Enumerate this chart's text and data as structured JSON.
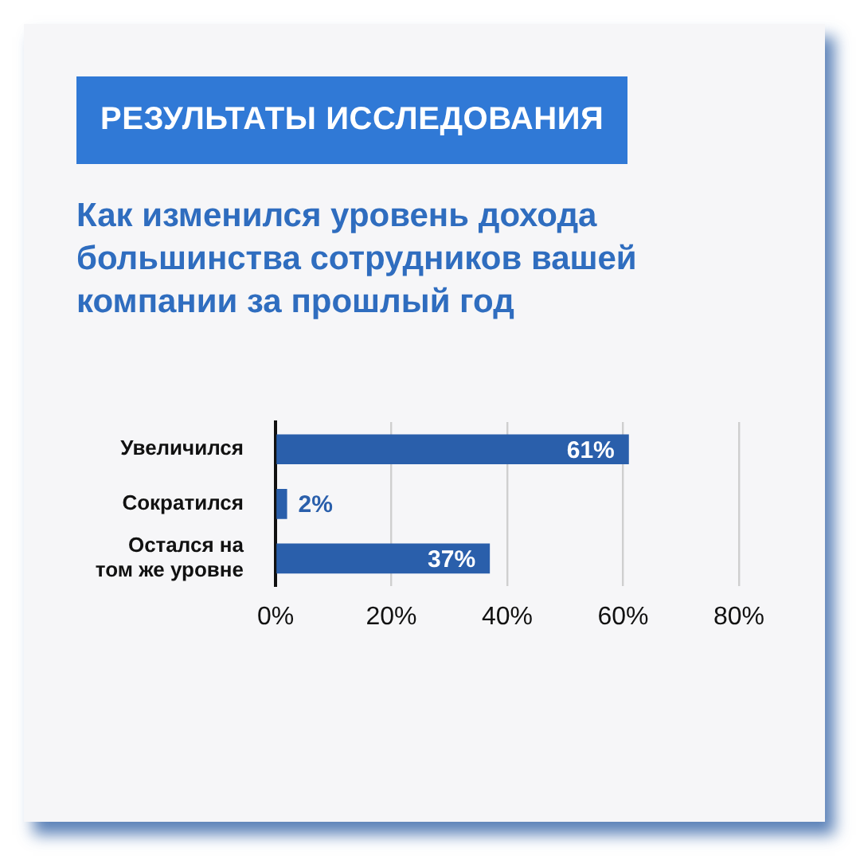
{
  "chart_data": {
    "type": "bar",
    "title": "РЕЗУЛЬТАТЫ ИССЛЕДОВАНИЯ",
    "subtitle": "Как изменился уровень дохода большинства сотрудников вашей компании за прошлый год",
    "orientation": "horizontal",
    "categories": [
      "Увеличился",
      "Сократился",
      "Остался на том же уровне"
    ],
    "values": [
      61,
      2,
      37
    ],
    "value_labels": [
      "61%",
      "2%",
      "37%"
    ],
    "color": "#2a5fab",
    "xlim": [
      0,
      80
    ],
    "xticks": [
      {
        "value": 0,
        "label": "0%"
      },
      {
        "value": 20,
        "label": "20%"
      },
      {
        "value": 40,
        "label": "40%"
      },
      {
        "value": 60,
        "label": "60%"
      },
      {
        "value": 80,
        "label": "80%"
      }
    ],
    "grid": "x"
  }
}
